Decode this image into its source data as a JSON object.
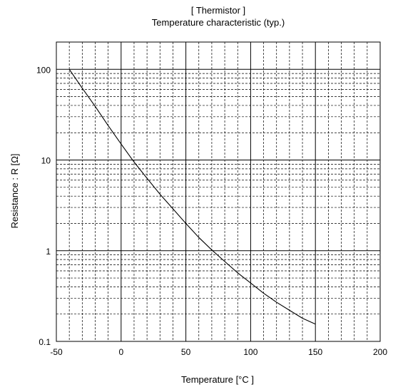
{
  "chart_data": {
    "type": "line",
    "title_line1": "[ Thermistor ]",
    "title_line2": "Temperature characteristic (typ.)",
    "xlabel": "Temperature [°C ]",
    "ylabel": "Resistance : R [Ω]",
    "xlim": [
      -50,
      200
    ],
    "ylim": [
      0.1,
      200
    ],
    "y_scale": "log",
    "grid": true,
    "x_ticks": [
      -50,
      0,
      50,
      100,
      150,
      200
    ],
    "x_tick_labels": [
      "-50",
      "0",
      "50",
      "100",
      "150",
      "200"
    ],
    "y_ticks": [
      0.1,
      1,
      10,
      100
    ],
    "y_tick_labels": [
      "0.1",
      "1",
      "10",
      "100"
    ],
    "series": [
      {
        "x": [
          -40,
          -30,
          -20,
          -10,
          0,
          10,
          20,
          30,
          40,
          50,
          60,
          70,
          80,
          90,
          100,
          110,
          120,
          130,
          140,
          150
        ],
        "y": [
          100,
          62,
          39,
          24,
          15,
          9.5,
          6.3,
          4.2,
          2.9,
          2.0,
          1.4,
          1.02,
          0.76,
          0.57,
          0.44,
          0.34,
          0.27,
          0.22,
          0.18,
          0.155
        ]
      }
    ]
  }
}
